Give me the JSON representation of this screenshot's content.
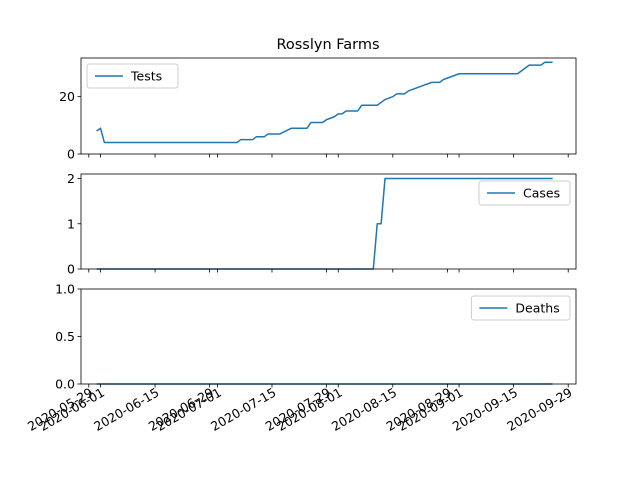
{
  "chart_data": {
    "type": "line",
    "title": "Rosslyn Farms",
    "x_tick_labels": [
      "2020-05-29",
      "2020-06-01",
      "2020-06-15",
      "2020-06-29",
      "2020-07-01",
      "2020-07-15",
      "2020-07-29",
      "2020-08-01",
      "2020-08-15",
      "2020-08-29",
      "2020-09-01",
      "2020-09-15",
      "2020-09-29"
    ],
    "xlim": [
      "2020-05-27",
      "2020-10-01"
    ],
    "grid": false,
    "panels": [
      {
        "legend_position": "upper-left",
        "ylim": [
          0,
          33.5
        ],
        "y_ticks": [
          0,
          20
        ],
        "series": [
          {
            "name": "Tests",
            "color": "#1f77b4",
            "points": [
              [
                "2020-05-31",
                8
              ],
              [
                "2020-06-01",
                9
              ],
              [
                "2020-06-02",
                4
              ],
              [
                "2020-06-10",
                4
              ],
              [
                "2020-06-20",
                4
              ],
              [
                "2020-06-30",
                4
              ],
              [
                "2020-07-06",
                4
              ],
              [
                "2020-07-07",
                5
              ],
              [
                "2020-07-10",
                5
              ],
              [
                "2020-07-11",
                6
              ],
              [
                "2020-07-13",
                6
              ],
              [
                "2020-07-14",
                7
              ],
              [
                "2020-07-17",
                7
              ],
              [
                "2020-07-20",
                9
              ],
              [
                "2020-07-24",
                9
              ],
              [
                "2020-07-25",
                11
              ],
              [
                "2020-07-28",
                11
              ],
              [
                "2020-07-29",
                12
              ],
              [
                "2020-07-31",
                13
              ],
              [
                "2020-08-01",
                14
              ],
              [
                "2020-08-02",
                14
              ],
              [
                "2020-08-03",
                15
              ],
              [
                "2020-08-06",
                15
              ],
              [
                "2020-08-07",
                17
              ],
              [
                "2020-08-11",
                17
              ],
              [
                "2020-08-12",
                18
              ],
              [
                "2020-08-13",
                19
              ],
              [
                "2020-08-15",
                20
              ],
              [
                "2020-08-16",
                21
              ],
              [
                "2020-08-18",
                21
              ],
              [
                "2020-08-19",
                22
              ],
              [
                "2020-08-21",
                23
              ],
              [
                "2020-08-23",
                24
              ],
              [
                "2020-08-25",
                25
              ],
              [
                "2020-08-27",
                25
              ],
              [
                "2020-08-28",
                26
              ],
              [
                "2020-08-30",
                27
              ],
              [
                "2020-09-01",
                28
              ],
              [
                "2020-09-10",
                28
              ],
              [
                "2020-09-16",
                28
              ],
              [
                "2020-09-17",
                29
              ],
              [
                "2020-09-19",
                31
              ],
              [
                "2020-09-22",
                31
              ],
              [
                "2020-09-23",
                32
              ],
              [
                "2020-09-25",
                32
              ]
            ]
          }
        ]
      },
      {
        "legend_position": "upper-right",
        "ylim": [
          0,
          2.1
        ],
        "y_ticks": [
          0,
          1,
          2
        ],
        "series": [
          {
            "name": "Cases",
            "color": "#1f77b4",
            "points": [
              [
                "2020-05-31",
                0
              ],
              [
                "2020-08-10",
                0
              ],
              [
                "2020-08-11",
                1
              ],
              [
                "2020-08-12",
                1
              ],
              [
                "2020-08-13",
                2
              ],
              [
                "2020-09-25",
                2
              ]
            ]
          }
        ]
      },
      {
        "legend_position": "upper-right",
        "ylim": [
          0,
          1
        ],
        "y_ticks": [
          0.0,
          0.5,
          1.0
        ],
        "y_tick_labels": [
          "0.0",
          "0.5",
          "1.0"
        ],
        "series": [
          {
            "name": "Deaths",
            "color": "#1f77b4",
            "points": [
              [
                "2020-05-31",
                0
              ],
              [
                "2020-09-25",
                0
              ]
            ]
          }
        ]
      }
    ]
  }
}
